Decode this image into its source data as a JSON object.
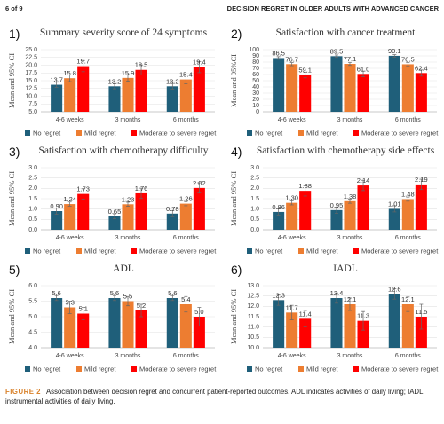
{
  "header": {
    "page": "6 of 9",
    "running_title": "DECISION REGRET IN OLDER ADULTS WITH ADVANCED CANCER"
  },
  "chart_data": [
    {
      "type": "bar",
      "panel_label": "1)",
      "title": "Summary severity score of 24 symptoms",
      "y_label": "Mean and 95% CI",
      "categories": [
        "4-6 weeks",
        "3 months",
        "6 months"
      ],
      "series": [
        {
          "name": "No regret",
          "color": "#1f5f7a",
          "values": [
            13.7,
            13.2,
            13.2
          ],
          "errors": [
            0.8,
            0.8,
            0.9
          ]
        },
        {
          "name": "Mild regret",
          "color": "#ed7d31",
          "values": [
            15.8,
            15.9,
            15.4
          ],
          "errors": [
            1.1,
            1.1,
            1.4
          ]
        },
        {
          "name": "Moderate to severe regret",
          "color": "#ff0000",
          "values": [
            19.7,
            18.5,
            19.4
          ],
          "errors": [
            1.8,
            1.6,
            1.8
          ]
        }
      ],
      "ylim": [
        5,
        25
      ],
      "yticks": [
        {
          "value": 5,
          "label": "5.0"
        },
        7.5,
        {
          "value": 10,
          "label": "10.0"
        },
        12.5,
        {
          "value": 15,
          "label": "15.0"
        },
        17.5,
        {
          "value": 20,
          "label": "20.0"
        },
        22.5,
        {
          "value": 25,
          "label": "25.0"
        }
      ],
      "grid": true
    },
    {
      "type": "bar",
      "panel_label": "2)",
      "title": "Satisfaction with cancer treatment",
      "y_label": "Mean and 95%CI",
      "categories": [
        "4-6 weeks",
        "3 months",
        "6 months"
      ],
      "series": [
        {
          "name": "No regret",
          "color": "#1f5f7a",
          "values": [
            86.5,
            89.5,
            90.1
          ],
          "errors": [
            2.2,
            2.0,
            2.0
          ]
        },
        {
          "name": "Mild regret",
          "color": "#ed7d31",
          "values": [
            76.7,
            77.1,
            76.5
          ],
          "errors": [
            2.5,
            2.5,
            2.5
          ]
        },
        {
          "name": "Moderate to severe regret",
          "color": "#ff0000",
          "values": [
            59.1,
            61.0,
            62.4
          ],
          "value_labels": [
            "59.1",
            "61.0",
            "62.4"
          ],
          "errors": [
            4.5,
            4.5,
            5
          ]
        }
      ],
      "ylim": [
        0,
        100
      ],
      "yticks": [
        0,
        10,
        20,
        30,
        40,
        50,
        60,
        70,
        80,
        90,
        100
      ],
      "grid": true
    },
    {
      "type": "bar",
      "panel_label": "3)",
      "title": "Satisfaction with chemotherapy difficulty",
      "y_label": "Mean and 95% CI",
      "categories": [
        "4-6 weeks",
        "3 months",
        "6 months"
      ],
      "series": [
        {
          "name": "No regret",
          "color": "#1f5f7a",
          "values": [
            0.9,
            0.65,
            0.78
          ],
          "value_labels": [
            "0.90",
            "0.65",
            "0.78"
          ],
          "errors": [
            0.15,
            0.12,
            0.15
          ]
        },
        {
          "name": "Mild regret",
          "color": "#ed7d31",
          "values": [
            1.24,
            1.23,
            1.26
          ],
          "errors": [
            0.1,
            0.1,
            0.1
          ]
        },
        {
          "name": "Moderate to severe regret",
          "color": "#ff0000",
          "values": [
            1.73,
            1.76,
            2.02
          ],
          "errors": [
            0.25,
            0.25,
            0.25
          ]
        }
      ],
      "ylim": [
        0,
        3
      ],
      "yticks": [
        {
          "value": 0,
          "label": "0.0"
        },
        0.5,
        {
          "value": 1,
          "label": "1.0"
        },
        1.5,
        {
          "value": 2,
          "label": "2.0"
        },
        2.5,
        {
          "value": 3,
          "label": "3.0"
        }
      ],
      "grid": true
    },
    {
      "type": "bar",
      "panel_label": "4)",
      "title": "Satisfaction with chemotherapy side effects",
      "y_label": "Mean and 95% CI",
      "categories": [
        "4-6 weeks",
        "3 months",
        "6 months"
      ],
      "series": [
        {
          "name": "No regret",
          "color": "#1f5f7a",
          "values": [
            0.86,
            0.95,
            1.01
          ],
          "errors": [
            0.15,
            0.15,
            0.15
          ]
        },
        {
          "name": "Mild regret",
          "color": "#ed7d31",
          "values": [
            1.3,
            1.38,
            1.48
          ],
          "value_labels": [
            "1.30",
            "1.38",
            "1.48"
          ],
          "errors": [
            0.1,
            0.1,
            0.1
          ]
        },
        {
          "name": "Moderate to severe regret",
          "color": "#ff0000",
          "values": [
            1.88,
            2.14,
            2.19
          ],
          "errors": [
            0.25,
            0.25,
            0.25
          ]
        }
      ],
      "ylim": [
        0,
        3
      ],
      "yticks": [
        {
          "value": 0,
          "label": "0.0"
        },
        0.5,
        {
          "value": 1,
          "label": "1.0"
        },
        1.5,
        {
          "value": 2,
          "label": "2.0"
        },
        2.5,
        {
          "value": 3,
          "label": "3.0"
        }
      ],
      "grid": true
    },
    {
      "type": "bar",
      "panel_label": "5)",
      "title": "ADL",
      "y_label": "Mean and 95% CI",
      "categories": [
        "4-6 weeks",
        "3 months",
        "6 months"
      ],
      "series": [
        {
          "name": "No regret",
          "color": "#1f5f7a",
          "values": [
            5.6,
            5.6,
            5.6
          ],
          "errors": [
            0.08,
            0.08,
            0.08
          ]
        },
        {
          "name": "Mild regret",
          "color": "#ed7d31",
          "values": [
            5.3,
            5.5,
            5.4
          ],
          "errors": [
            0.2,
            0.15,
            0.25
          ]
        },
        {
          "name": "Moderate to severe regret",
          "color": "#ff0000",
          "values": [
            5.1,
            5.2,
            5.0
          ],
          "value_labels": [
            "5.1",
            "5.2",
            "5.0"
          ],
          "errors": [
            0.2,
            0.2,
            0.3
          ]
        }
      ],
      "ylim": [
        4,
        6
      ],
      "yticks": [
        {
          "value": 4,
          "label": "4.0"
        },
        4.5,
        {
          "value": 5,
          "label": "5.0"
        },
        5.5,
        {
          "value": 6,
          "label": "6.0"
        }
      ],
      "grid": true
    },
    {
      "type": "bar",
      "panel_label": "6)",
      "title": "IADL",
      "y_label": "Mean and 95% CI",
      "categories": [
        "4-6 weeks",
        "3 months",
        "6 months"
      ],
      "series": [
        {
          "name": "No regret",
          "color": "#1f5f7a",
          "values": [
            12.3,
            12.4,
            12.6
          ],
          "errors": [
            0.25,
            0.25,
            0.25
          ]
        },
        {
          "name": "Mild regret",
          "color": "#ed7d31",
          "values": [
            11.7,
            12.1,
            12.1
          ],
          "errors": [
            0.35,
            0.3,
            0.35
          ]
        },
        {
          "name": "Moderate to severe regret",
          "color": "#ff0000",
          "values": [
            11.4,
            11.3,
            11.5
          ],
          "errors": [
            0.4,
            0.45,
            0.6
          ]
        }
      ],
      "ylim": [
        10,
        13
      ],
      "yticks": [
        {
          "value": 10,
          "label": "10.0"
        },
        10.5,
        {
          "value": 11,
          "label": "11.0"
        },
        11.5,
        {
          "value": 12,
          "label": "12.0"
        },
        12.5,
        {
          "value": 13,
          "label": "13.0"
        }
      ],
      "grid": true
    }
  ],
  "caption": {
    "label": "FIGURE 2",
    "text": "Association between decision regret and concurrent patient-reported outcomes. ADL indicates activities of daily living; IADL, instrumental activities of daily living."
  }
}
